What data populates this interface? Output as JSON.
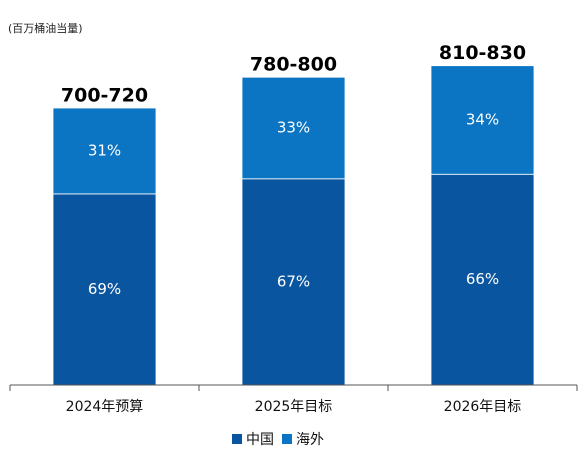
{
  "chart_data": {
    "type": "stacked_bar",
    "unit_label": "(百万桶油当量)",
    "categories": [
      "2024年预算",
      "2025年目标",
      "2026年目标"
    ],
    "series": [
      {
        "name": "中国",
        "color": "#0a55a0",
        "values": [
          69,
          67,
          66
        ],
        "value_labels": [
          "69%",
          "67%",
          "66%"
        ]
      },
      {
        "name": "海外",
        "color": "#0b74c3",
        "values": [
          31,
          33,
          34
        ],
        "value_labels": [
          "31%",
          "33%",
          "34%"
        ]
      }
    ],
    "totals": [
      {
        "value": [
          700,
          720
        ],
        "label": "700-720"
      },
      {
        "value": [
          780,
          800
        ],
        "label": "780-800"
      },
      {
        "value": [
          810,
          830
        ],
        "label": "810-830"
      }
    ],
    "ylim": [
      0,
      850
    ]
  }
}
